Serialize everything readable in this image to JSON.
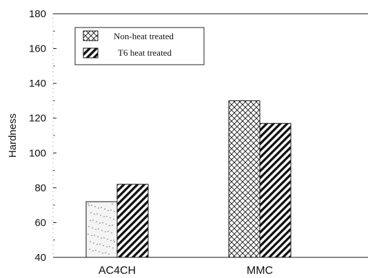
{
  "chart_data": {
    "type": "bar",
    "categories": [
      "AC4CH",
      "MMC"
    ],
    "series": [
      {
        "name": "Non-heat treated",
        "values": [
          72,
          130
        ]
      },
      {
        "name": "T6 heat treated",
        "values": [
          82,
          117
        ]
      }
    ],
    "title": "",
    "xlabel": "",
    "ylabel": "Hardness",
    "ylim": [
      40,
      180
    ],
    "yticks": [
      40,
      60,
      80,
      100,
      120,
      140,
      160,
      180
    ],
    "grid": false,
    "legend_position": "top-left",
    "colors": {
      "axis": "#111111",
      "fill": "#ffffff"
    }
  }
}
